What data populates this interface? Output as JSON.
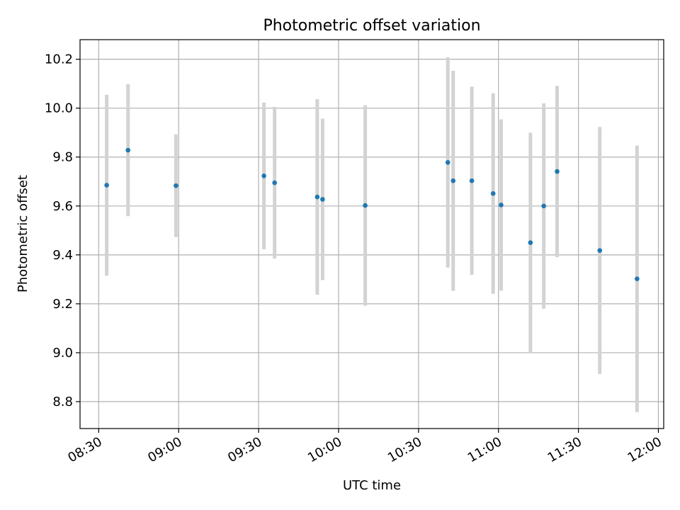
{
  "chart_data": {
    "type": "scatter",
    "title": "Photometric offset variation",
    "xlabel": "UTC time",
    "ylabel": "Photometric offset",
    "x_ticks": [
      "08:30",
      "09:00",
      "09:30",
      "10:00",
      "10:30",
      "11:00",
      "11:30",
      "12:00"
    ],
    "y_ticks": [
      "8.8",
      "9.0",
      "9.2",
      "9.4",
      "9.6",
      "9.8",
      "10.0",
      "10.2"
    ],
    "xlim": [
      "08:23",
      "12:02"
    ],
    "ylim": [
      8.69,
      10.28
    ],
    "grid": true,
    "colors": {
      "point": "#1f77b4",
      "errorbar": "#d3d3d3",
      "grid": "#b0b0b0"
    },
    "points": [
      {
        "time": "08:33",
        "y": 9.685,
        "ylow": 9.315,
        "yhigh": 10.055
      },
      {
        "time": "08:41",
        "y": 9.828,
        "ylow": 9.558,
        "yhigh": 10.098
      },
      {
        "time": "08:59",
        "y": 9.683,
        "ylow": 9.473,
        "yhigh": 9.893
      },
      {
        "time": "09:32",
        "y": 9.723,
        "ylow": 9.423,
        "yhigh": 10.023
      },
      {
        "time": "09:36",
        "y": 9.695,
        "ylow": 9.385,
        "yhigh": 10.005
      },
      {
        "time": "09:52",
        "y": 9.637,
        "ylow": 9.237,
        "yhigh": 10.037
      },
      {
        "time": "09:54",
        "y": 9.627,
        "ylow": 9.297,
        "yhigh": 9.957
      },
      {
        "time": "10:10",
        "y": 9.602,
        "ylow": 9.192,
        "yhigh": 10.012
      },
      {
        "time": "10:41",
        "y": 9.778,
        "ylow": 9.348,
        "yhigh": 10.208
      },
      {
        "time": "10:43",
        "y": 9.703,
        "ylow": 9.253,
        "yhigh": 10.153
      },
      {
        "time": "10:50",
        "y": 9.703,
        "ylow": 9.318,
        "yhigh": 10.088
      },
      {
        "time": "10:58",
        "y": 9.651,
        "ylow": 9.241,
        "yhigh": 10.061
      },
      {
        "time": "11:01",
        "y": 9.604,
        "ylow": 9.254,
        "yhigh": 9.954
      },
      {
        "time": "11:12",
        "y": 9.45,
        "ylow": 9.0,
        "yhigh": 9.9
      },
      {
        "time": "11:17",
        "y": 9.6,
        "ylow": 9.18,
        "yhigh": 10.02
      },
      {
        "time": "11:22",
        "y": 9.741,
        "ylow": 9.391,
        "yhigh": 10.091
      },
      {
        "time": "11:38",
        "y": 9.418,
        "ylow": 8.913,
        "yhigh": 9.923
      },
      {
        "time": "11:52",
        "y": 9.302,
        "ylow": 8.757,
        "yhigh": 9.847
      }
    ]
  }
}
